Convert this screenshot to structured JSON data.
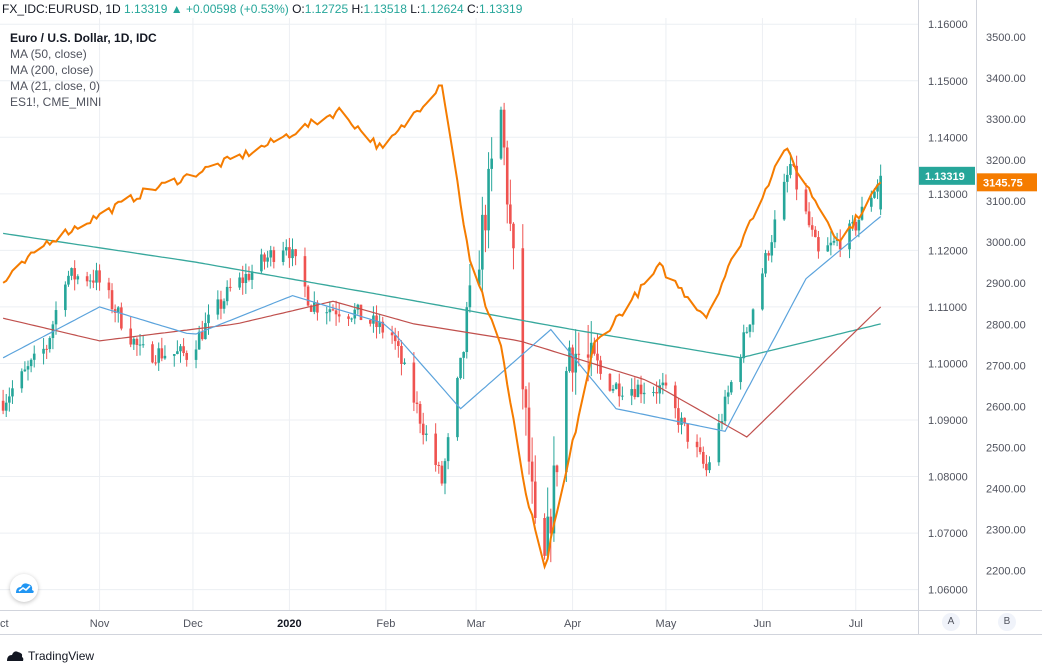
{
  "header": {
    "symbol": "FX_IDC:EURUSD, 1D",
    "last": "1.13319",
    "change": "+0.00598 (+0.53%)",
    "o_label": "O:",
    "o": "1.12725",
    "h_label": "H:",
    "h": "1.13518",
    "l_label": "L:",
    "l": "1.12624",
    "c_label": "C:",
    "c": "1.13319"
  },
  "legend": {
    "title": "Euro / U.S. Dollar, 1D, IDC",
    "items": [
      "MA (50, close)",
      "MA (200, close)",
      "MA (21, close, 0)",
      "ES1!, CME_MINI"
    ]
  },
  "price_tags": {
    "eurusd": "1.13319",
    "es": "3145.75"
  },
  "axis_buttons": {
    "a": "A",
    "b": "B"
  },
  "footer": {
    "brand": "TradingView"
  },
  "colors": {
    "up": "#26a69a",
    "down": "#ef5350",
    "es": "#f57c00",
    "ma50": "#5ba3dc",
    "ma200": "#38a89d",
    "ma21": "#c0504d",
    "grid": "#eceff3"
  },
  "chart_data": {
    "type": "candlestick",
    "x_labels": [
      "ct",
      "Nov",
      "Dec",
      "2020",
      "Feb",
      "Mar",
      "Apr",
      "May",
      "Jun",
      "Jul"
    ],
    "y_left_ticks": [
      "1.16000",
      "1.15000",
      "1.14000",
      "1.13000",
      "1.12000",
      "1.11000",
      "1.10000",
      "1.09000",
      "1.08000",
      "1.07000",
      "1.06000"
    ],
    "y_right_ticks": [
      "3500.00",
      "3400.00",
      "3300.00",
      "3200.00",
      "3100.00",
      "3000.00",
      "2900.00",
      "2800.00",
      "2700.00",
      "2600.00",
      "2500.00",
      "2400.00",
      "2300.00",
      "2200.00"
    ],
    "ylim_eurusd": [
      1.0564,
      1.1611
    ],
    "ylim_es": [
      2104,
      3546
    ],
    "month_starts": [
      "2019-11-01",
      "2019-12-01",
      "2020-01-01",
      "2020-02-01",
      "2020-03-01",
      "2020-04-01",
      "2020-05-01",
      "2020-06-01",
      "2020-07-01"
    ],
    "eurusd_close": [
      [
        "2019-10-01",
        1.0934
      ],
      [
        "2019-10-15",
        1.103
      ],
      [
        "2019-10-21",
        1.1155
      ],
      [
        "2019-10-31",
        1.1152
      ],
      [
        "2019-11-14",
        1.102
      ],
      [
        "2019-11-29",
        1.1016
      ],
      [
        "2019-12-13",
        1.113
      ],
      [
        "2019-12-31",
        1.1215
      ],
      [
        "2020-01-08",
        1.1105
      ],
      [
        "2020-01-22",
        1.109
      ],
      [
        "2020-02-03",
        1.105
      ],
      [
        "2020-02-19",
        1.079
      ],
      [
        "2020-03-09",
        1.144
      ],
      [
        "2020-03-20",
        1.069
      ],
      [
        "2020-03-23",
        1.064
      ],
      [
        "2020-03-31",
        1.103
      ],
      [
        "2020-04-14",
        1.096
      ],
      [
        "2020-04-30",
        1.0955
      ],
      [
        "2020-05-14",
        1.081
      ],
      [
        "2020-05-29",
        1.11
      ],
      [
        "2020-06-10",
        1.135
      ],
      [
        "2020-06-19",
        1.119
      ],
      [
        "2020-06-30",
        1.1235
      ],
      [
        "2020-07-09",
        1.1332
      ]
    ],
    "es_close": [
      [
        "2019-10-01",
        2900
      ],
      [
        "2019-10-15",
        3000
      ],
      [
        "2019-11-15",
        3120
      ],
      [
        "2019-12-20",
        3220
      ],
      [
        "2020-01-17",
        3320
      ],
      [
        "2020-01-31",
        3225
      ],
      [
        "2020-02-19",
        3390
      ],
      [
        "2020-02-28",
        2950
      ],
      [
        "2020-03-09",
        2750
      ],
      [
        "2020-03-16",
        2420
      ],
      [
        "2020-03-23",
        2200
      ],
      [
        "2020-04-08",
        2750
      ],
      [
        "2020-04-29",
        2940
      ],
      [
        "2020-05-14",
        2820
      ],
      [
        "2020-06-08",
        3230
      ],
      [
        "2020-06-26",
        3000
      ],
      [
        "2020-07-09",
        3145.75
      ]
    ],
    "ma50": [
      [
        "2019-10-01",
        1.101
      ],
      [
        "2019-11-01",
        1.11
      ],
      [
        "2019-12-01",
        1.105
      ],
      [
        "2020-01-02",
        1.112
      ],
      [
        "2020-02-01",
        1.107
      ],
      [
        "2020-02-25",
        1.092
      ],
      [
        "2020-03-25",
        1.106
      ],
      [
        "2020-04-15",
        1.092
      ],
      [
        "2020-05-20",
        1.088
      ],
      [
        "2020-06-15",
        1.115
      ],
      [
        "2020-07-09",
        1.126
      ]
    ],
    "ma200": [
      [
        "2019-10-01",
        1.123
      ],
      [
        "2019-12-01",
        1.118
      ],
      [
        "2020-02-01",
        1.112
      ],
      [
        "2020-04-01",
        1.106
      ],
      [
        "2020-05-25",
        1.101
      ],
      [
        "2020-07-09",
        1.107
      ]
    ],
    "ma21": [
      [
        "2019-10-01",
        1.108
      ],
      [
        "2019-11-01",
        1.104
      ],
      [
        "2019-12-15",
        1.107
      ],
      [
        "2020-01-15",
        1.111
      ],
      [
        "2020-02-10",
        1.107
      ],
      [
        "2020-03-15",
        1.104
      ],
      [
        "2020-04-25",
        1.097
      ],
      [
        "2020-05-27",
        1.087
      ],
      [
        "2020-07-09",
        1.11
      ]
    ]
  }
}
